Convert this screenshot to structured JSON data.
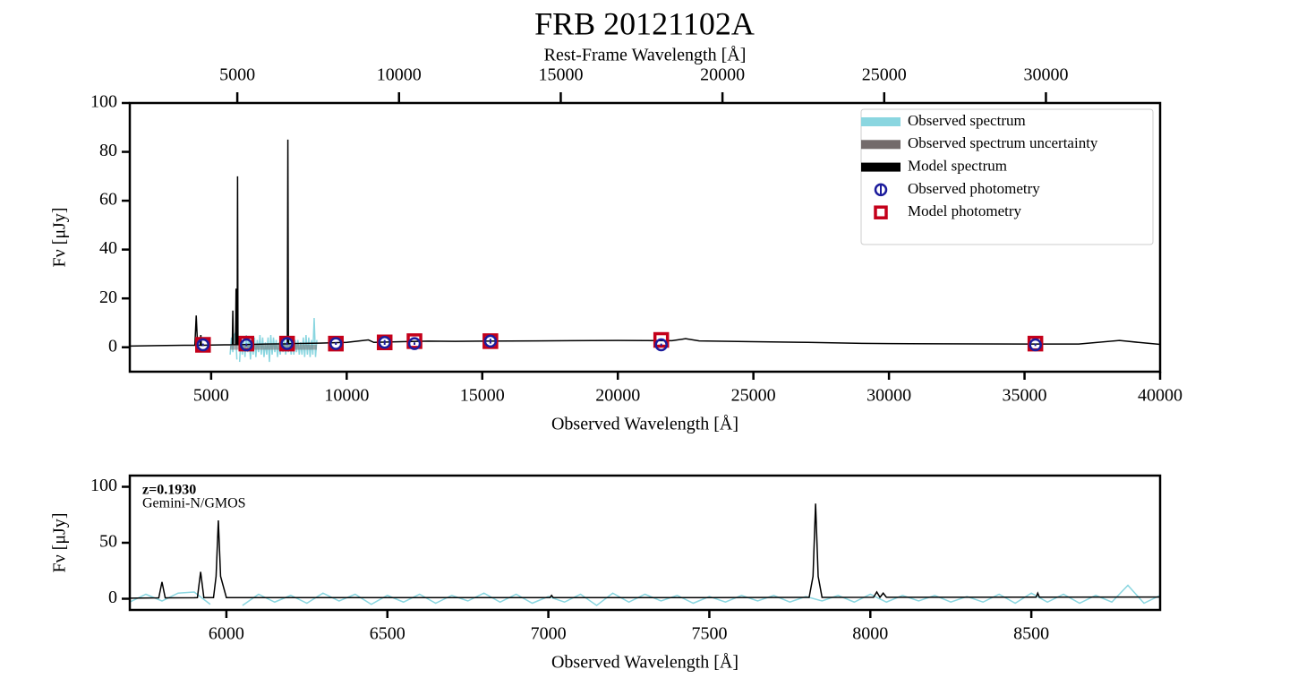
{
  "chart_data": [
    {
      "type": "line",
      "title": "FRB 20121102A",
      "xlabel": "Observed Wavelength [Å]",
      "ylabel": "Fν [μJy]",
      "x2label": "Rest-Frame Wavelength [Å]",
      "xlim": [
        2000,
        40000
      ],
      "ylim": [
        -10,
        100
      ],
      "xticks": [
        5000,
        10000,
        15000,
        20000,
        25000,
        30000,
        35000,
        40000
      ],
      "yticks": [
        0,
        20,
        40,
        60,
        80,
        100
      ],
      "x2lim": [
        1676.4,
        33529.8
      ],
      "x2ticks": [
        5000,
        10000,
        15000,
        20000,
        25000,
        30000
      ],
      "legend": "upper right",
      "series": [
        {
          "name": "Observed spectrum",
          "color": "#8ad6e0",
          "style": "line",
          "x": [
            5700,
            5750,
            5800,
            5850,
            5900,
            5950,
            6000,
            6050,
            6100,
            6150,
            6200,
            6250,
            6300,
            6350,
            6400,
            6450,
            6500,
            6550,
            6600,
            6650,
            6700,
            6750,
            6800,
            6850,
            6900,
            6950,
            7000,
            7050,
            7100,
            7150,
            7200,
            7250,
            7300,
            7350,
            7400,
            7450,
            7500,
            7550,
            7600,
            7650,
            7700,
            7750,
            7800,
            7850,
            7900,
            7950,
            8000,
            8050,
            8100,
            8150,
            8200,
            8250,
            8300,
            8350,
            8400,
            8450,
            8500,
            8550,
            8600,
            8650,
            8700,
            8750,
            8800,
            8850,
            8900
          ],
          "values": [
            -3,
            4,
            -2,
            5,
            6,
            -5,
            null,
            -6,
            4,
            -3,
            3,
            -4,
            5,
            -2,
            4,
            -5,
            3,
            -3,
            4,
            -4,
            3,
            -2,
            5,
            -3,
            4,
            -4,
            2,
            -3,
            4,
            -6,
            5,
            -3,
            4,
            -2,
            3,
            -4,
            2,
            -3,
            3,
            -2,
            3,
            -3,
            2,
            -2,
            3,
            -3,
            4,
            -3,
            3,
            -2,
            3,
            -3,
            2,
            -3,
            4,
            -4,
            5,
            -3,
            4,
            -4,
            3,
            -3,
            12,
            -4,
            3
          ]
        },
        {
          "name": "Observed spectrum uncertainty",
          "color": "#736b6b",
          "style": "band",
          "x": [
            5700,
            8900
          ],
          "values": [
            1,
            1
          ]
        },
        {
          "name": "Model spectrum",
          "color": "#000000",
          "style": "line",
          "x": [
            2000,
            3000,
            4000,
            4400,
            4450,
            4500,
            4600,
            4620,
            4640,
            5000,
            5500,
            5780,
            5800,
            5820,
            5900,
            5920,
            5940,
            5960,
            5975,
            5990,
            6500,
            7000,
            7810,
            7830,
            7850,
            8000,
            8500,
            9000,
            10000,
            10800,
            11000,
            12000,
            13000,
            14000,
            15000,
            17000,
            20000,
            22000,
            22500,
            23000,
            25000,
            27000,
            29000,
            30000,
            32000,
            35000,
            37000,
            38500,
            39200,
            40000
          ],
          "values": [
            0.5,
            0.7,
            0.8,
            0.8,
            13,
            0.8,
            0.8,
            5,
            0.8,
            0.9,
            1,
            1,
            15,
            1,
            1,
            24,
            1,
            1,
            70,
            1,
            1.2,
            1.3,
            1.4,
            85,
            1.4,
            1.5,
            1.6,
            1.7,
            2,
            3,
            2,
            2.3,
            2.5,
            2.4,
            2.5,
            2.6,
            2.8,
            2.7,
            3.5,
            2.6,
            2.3,
            2,
            1.6,
            1.5,
            1.4,
            1.3,
            1.3,
            2.8,
            2,
            1.2
          ]
        },
        {
          "name": "Observed photometry",
          "color": "#1c1c9c",
          "style": "circle",
          "x": [
            4700,
            6300,
            7800,
            9600,
            11400,
            12500,
            15300,
            21600,
            35400
          ],
          "values": [
            1,
            1,
            1.5,
            1.5,
            2,
            1.5,
            2.5,
            1,
            1
          ],
          "errors": [
            0.5,
            0.5,
            0.5,
            0.5,
            1,
            0.5,
            1,
            0.5,
            0.5
          ]
        },
        {
          "name": "Model photometry",
          "color": "#c4001a",
          "style": "square",
          "x": [
            4700,
            6300,
            7800,
            9600,
            11400,
            12500,
            15300,
            21600,
            35400
          ],
          "values": [
            1,
            1.5,
            1.5,
            1.5,
            2,
            2.5,
            2.5,
            3,
            1.5
          ]
        }
      ]
    },
    {
      "type": "line",
      "xlabel": "Observed Wavelength [Å]",
      "ylabel": "Fν [μJy]",
      "annotations": [
        "z=0.1930",
        "Gemini-N/GMOS"
      ],
      "xlim": [
        5700,
        8900
      ],
      "ylim": [
        -10,
        110
      ],
      "xticks": [
        6000,
        6500,
        7000,
        7500,
        8000,
        8500
      ],
      "yticks": [
        0,
        50,
        100
      ],
      "series": [
        {
          "color": "#8ad6e0",
          "style": "line",
          "x": [
            5700,
            5750,
            5800,
            5850,
            5900,
            5950,
            6000,
            6050,
            6100,
            6150,
            6200,
            6250,
            6300,
            6350,
            6400,
            6450,
            6500,
            6550,
            6600,
            6650,
            6700,
            6750,
            6800,
            6850,
            6900,
            6950,
            7000,
            7050,
            7100,
            7150,
            7200,
            7250,
            7300,
            7350,
            7400,
            7450,
            7500,
            7550,
            7600,
            7650,
            7700,
            7750,
            7800,
            7850,
            7900,
            7950,
            8000,
            8050,
            8100,
            8150,
            8200,
            8250,
            8300,
            8350,
            8400,
            8450,
            8500,
            8550,
            8600,
            8650,
            8700,
            8750,
            8800,
            8850,
            8900
          ],
          "values": [
            -3,
            4,
            -2,
            5,
            6,
            -5,
            null,
            -6,
            4,
            -3,
            3,
            -4,
            5,
            -2,
            4,
            -5,
            3,
            -3,
            4,
            -4,
            3,
            -2,
            5,
            -3,
            4,
            -4,
            2,
            -3,
            4,
            -6,
            5,
            -3,
            4,
            -2,
            3,
            -4,
            2,
            -3,
            3,
            -2,
            3,
            -3,
            2,
            -2,
            3,
            -3,
            4,
            -3,
            3,
            -2,
            3,
            -3,
            2,
            -3,
            4,
            -4,
            5,
            -3,
            4,
            -4,
            3,
            -3,
            12,
            -4,
            3
          ]
        },
        {
          "color": "#000000",
          "style": "line",
          "x": [
            5700,
            5790,
            5800,
            5810,
            5900,
            5910,
            5920,
            5930,
            5960,
            5968,
            5975,
            5982,
            6000,
            6500,
            7000,
            7005,
            7010,
            7015,
            7500,
            7810,
            7822,
            7830,
            7838,
            7850,
            8010,
            8020,
            8030,
            8040,
            8050,
            8500,
            8515,
            8520,
            8525,
            8900
          ],
          "values": [
            0.5,
            0.8,
            15,
            0.8,
            0.9,
            1,
            24,
            1,
            1,
            20,
            70,
            20,
            1,
            1,
            1,
            1,
            3,
            1,
            1,
            1.2,
            20,
            85,
            20,
            1.2,
            1.3,
            6,
            1.3,
            5,
            1.3,
            1.4,
            1.4,
            5,
            1.4,
            1.5
          ]
        }
      ]
    }
  ]
}
